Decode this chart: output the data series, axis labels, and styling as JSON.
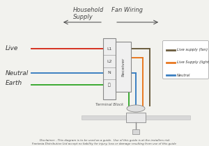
{
  "bg_color": "#f2f2ee",
  "household_label": "Household  Fan Wiring\nSupply",
  "live_label": "Live",
  "neutral_label": "Neutral",
  "earth_label": "Earth",
  "terminal_label": "Terminal Block",
  "receiver_label": "Receiver",
  "legend_items": [
    {
      "label": "Live supply (fan)",
      "color": "#6b5c3e"
    },
    {
      "label": "Live Supply (light)",
      "color": "#e87820"
    },
    {
      "label": "Neutral",
      "color": "#3a7fc1"
    }
  ],
  "disclaimer": "Disclaimer - This diagram is to be used as a guide.  Use of this guide is at the installers risk\nFantasia Distribution Ltd accept no liability for injury, loss or damage resulting from use of this guide",
  "wire_colors": {
    "live": "#d63020",
    "neutral": "#3a7fc1",
    "earth": "#3aaa30",
    "fan": "#6b5c3e",
    "light": "#e87820"
  },
  "arrow_color": "#444444"
}
